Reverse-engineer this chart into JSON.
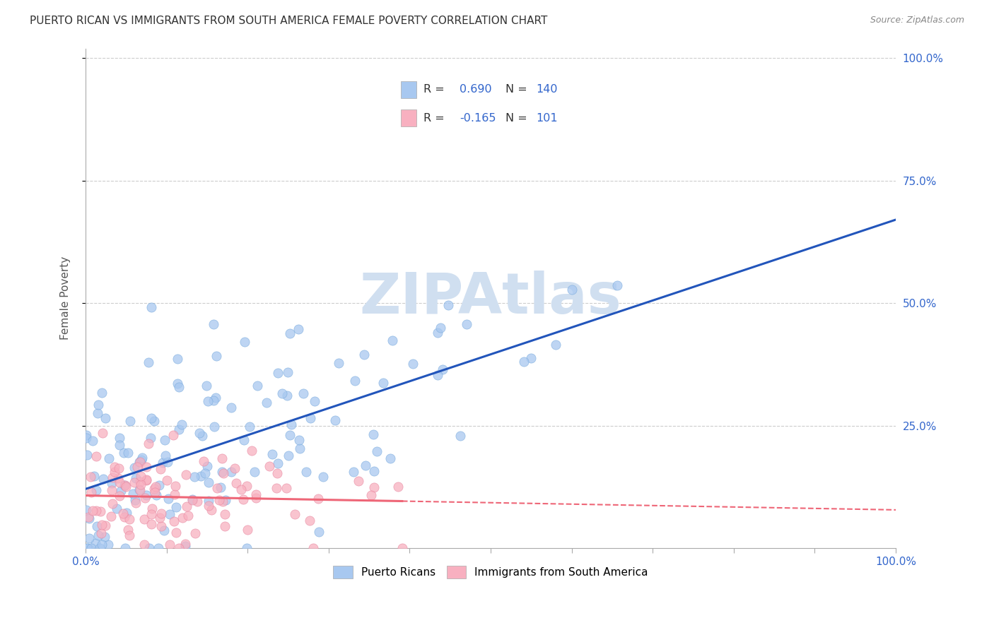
{
  "title": "PUERTO RICAN VS IMMIGRANTS FROM SOUTH AMERICA FEMALE POVERTY CORRELATION CHART",
  "source": "Source: ZipAtlas.com",
  "ylabel": "Female Poverty",
  "blue_scatter_color": "#a8c8f0",
  "pink_scatter_color": "#f8b0c0",
  "blue_line_color": "#2255bb",
  "pink_line_color": "#ee6677",
  "pink_dash_color": "#ee6677",
  "watermark_color": "#d0dff0",
  "grid_color": "#cccccc",
  "background_color": "#ffffff",
  "title_fontsize": 11,
  "source_fontsize": 9,
  "R_blue": 0.69,
  "N_blue": 140,
  "R_pink": -0.165,
  "N_pink": 101,
  "seed_blue": 42,
  "seed_pink": 99,
  "legend_R_color": "#3366cc",
  "legend_N_color": "#3366cc",
  "legend_text_color": "#333333",
  "axis_label_color": "#3366cc",
  "ylabel_color": "#555555",
  "bottom_legend_labels": [
    "Puerto Ricans",
    "Immigrants from South America"
  ]
}
